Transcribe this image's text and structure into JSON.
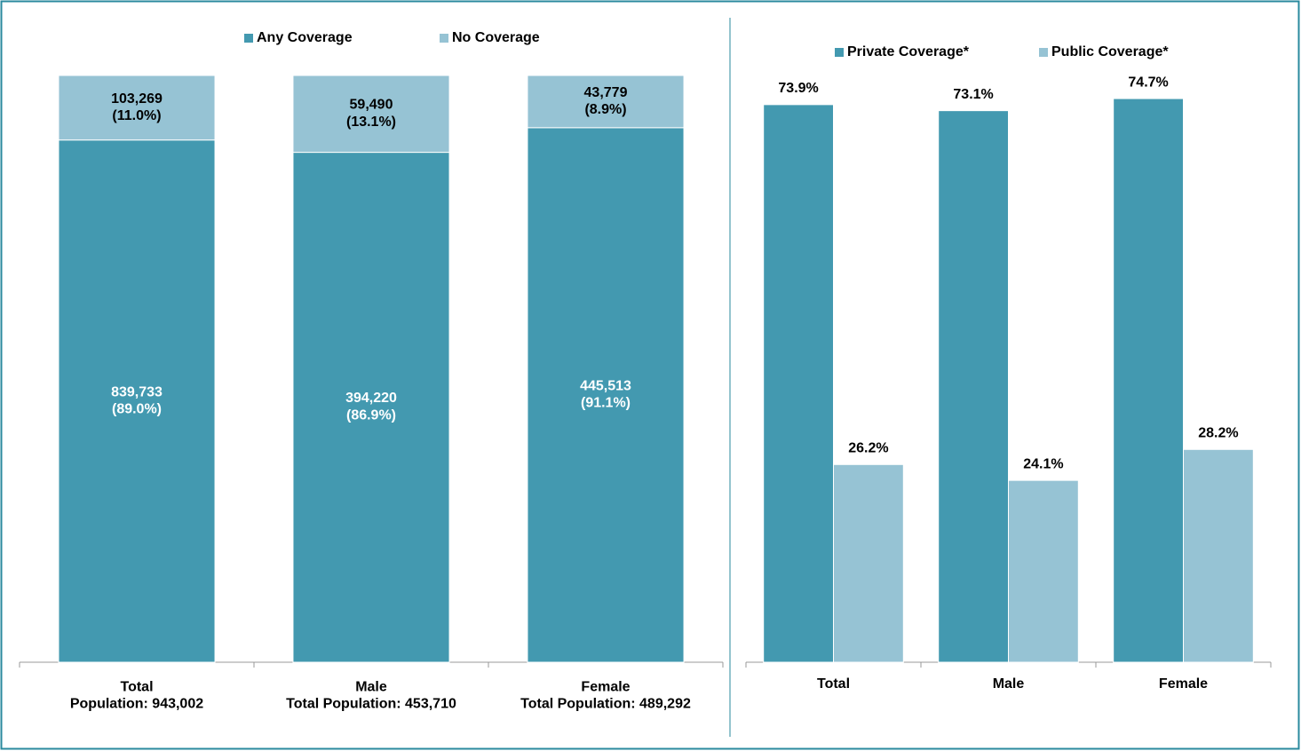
{
  "chart_data": [
    {
      "type": "bar",
      "stacked": true,
      "categories": [
        "Total\nPopulation:  943,002",
        "Male\nTotal Population:  453,710",
        "Female\nTotal Population:  489,292"
      ],
      "series": [
        {
          "name": "Any Coverage",
          "color": "#4399b0",
          "values": [
            89.0,
            86.9,
            91.1
          ],
          "value_labels": [
            "839,733\n(89.0%)",
            "394,220\n(86.9%)",
            "445,513\n(91.1%)"
          ],
          "label_color": "#ffffff"
        },
        {
          "name": "No Coverage",
          "color": "#96c3d4",
          "values": [
            11.0,
            13.1,
            8.9
          ],
          "value_labels": [
            "103,269\n(11.0%)",
            "59,490\n(13.1%)",
            "43,779\n(8.9%)"
          ],
          "label_color": "#000000"
        }
      ],
      "ylim": [
        0,
        100
      ],
      "legend": "top"
    },
    {
      "type": "bar",
      "stacked": false,
      "categories": [
        "Total",
        "Male",
        "Female"
      ],
      "series": [
        {
          "name": "Private Coverage*",
          "color": "#4399b0",
          "values": [
            73.9,
            73.1,
            74.7
          ],
          "value_labels": [
            "73.9%",
            "73.1%",
            "74.7%"
          ],
          "label_color": "#000000"
        },
        {
          "name": "Public Coverage*",
          "color": "#96c3d4",
          "values": [
            26.2,
            24.1,
            28.2
          ],
          "value_labels": [
            "26.2%",
            "24.1%",
            "28.2%"
          ],
          "label_color": "#000000"
        }
      ],
      "ylim": [
        0,
        80
      ],
      "legend": "top"
    }
  ]
}
